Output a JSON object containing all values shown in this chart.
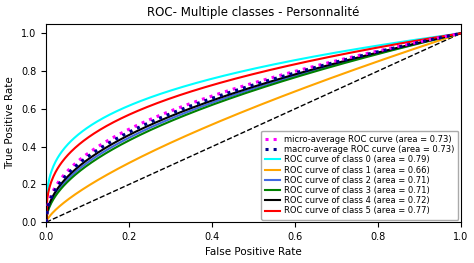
{
  "title": "ROC- Multiple classes - Personnalité",
  "xlabel": "False Positive Rate",
  "ylabel": "True Positive Rate",
  "xlim": [
    0.0,
    1.0
  ],
  "ylim": [
    0.0,
    1.05
  ],
  "curves": [
    {
      "label": "micro-average ROC curve (area = 0.73)",
      "color": "#ff00ff",
      "linestyle": "dotted",
      "linewidth": 2.2,
      "auc": 0.73,
      "alpha_pow": 0.44
    },
    {
      "label": "macro-average ROC curve (area = 0.73)",
      "color": "#00008b",
      "linestyle": "dotted",
      "linewidth": 2.2,
      "auc": 0.73,
      "alpha_pow": 0.46
    },
    {
      "label": "ROC curve of class 0 (area = 0.79)",
      "color": "cyan",
      "linestyle": "solid",
      "linewidth": 1.5,
      "auc": 0.79,
      "alpha_pow": 0.3
    },
    {
      "label": "ROC curve of class 1 (area = 0.66)",
      "color": "orange",
      "linestyle": "solid",
      "linewidth": 1.5,
      "auc": 0.66,
      "alpha_pow": 0.72
    },
    {
      "label": "ROC curve of class 2 (area = 0.71)",
      "color": "#4169e1",
      "linestyle": "solid",
      "linewidth": 1.5,
      "auc": 0.71,
      "alpha_pow": 0.5
    },
    {
      "label": "ROC curve of class 3 (area = 0.71)",
      "color": "green",
      "linestyle": "solid",
      "linewidth": 1.5,
      "auc": 0.71,
      "alpha_pow": 0.52
    },
    {
      "label": "ROC curve of class 4 (area = 0.72)",
      "color": "black",
      "linestyle": "solid",
      "linewidth": 1.5,
      "auc": 0.72,
      "alpha_pow": 0.48
    },
    {
      "label": "ROC curve of class 5 (area = 0.77)",
      "color": "red",
      "linestyle": "solid",
      "linewidth": 1.5,
      "auc": 0.77,
      "alpha_pow": 0.35
    }
  ],
  "diagonal_color": "black",
  "figsize": [
    4.74,
    2.63
  ],
  "dpi": 100,
  "legend_fontsize": 6.0,
  "title_fontsize": 8.5,
  "axis_fontsize": 7.5,
  "tick_fontsize": 7.0
}
